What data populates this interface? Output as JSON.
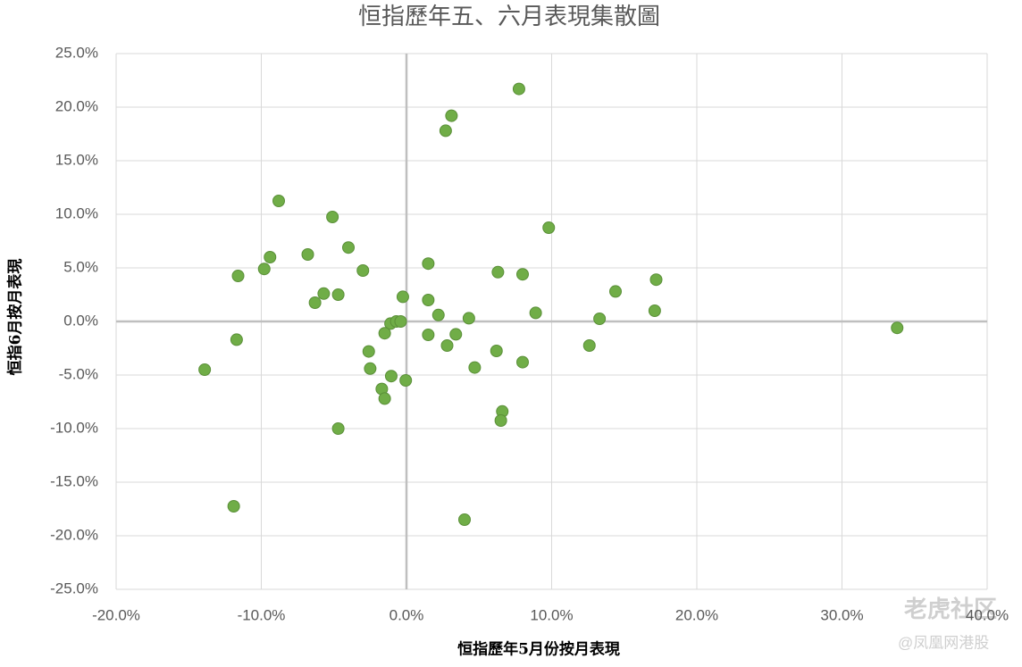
{
  "chart_data": {
    "type": "scatter",
    "title": "恒指歷年五、六月表現集散圖",
    "x_label": "恒指歷年5月份按月表現",
    "y_label": "恒指6月按月表現",
    "color": "#70ad47",
    "grid": true,
    "xlim": [
      -20,
      40
    ],
    "xticks": [
      {
        "value": -20,
        "label": "-20.0%"
      },
      {
        "value": -10,
        "label": "-10.0%"
      },
      {
        "value": 0,
        "label": "0.0%"
      },
      {
        "value": 10,
        "label": "10.0%"
      },
      {
        "value": 20,
        "label": "20.0%"
      },
      {
        "value": 30,
        "label": "30.0%"
      },
      {
        "value": 40,
        "label": "40.0%"
      }
    ],
    "ylim": [
      -25,
      25
    ],
    "yticks": [
      {
        "value": -25,
        "label": "-25.0%"
      },
      {
        "value": -20,
        "label": "-20.0%"
      },
      {
        "value": -15,
        "label": "-15.0%"
      },
      {
        "value": -10,
        "label": "-10.0%"
      },
      {
        "value": -5,
        "label": "-5.0%"
      },
      {
        "value": 0,
        "label": "0.0%"
      },
      {
        "value": 5,
        "label": "5.0%"
      },
      {
        "value": 10,
        "label": "10.0%"
      },
      {
        "value": 15,
        "label": "15.0%"
      },
      {
        "value": 20,
        "label": "20.0%"
      },
      {
        "value": 25,
        "label": "25.0%"
      }
    ],
    "x": [
      7.75,
      3.1,
      2.7,
      -8.8,
      -5.1,
      9.8,
      -4.0,
      -9.4,
      -6.8,
      -9.8,
      -11.6,
      -3.0,
      1.5,
      6.3,
      8.0,
      17.2,
      14.4,
      -5.7,
      -4.7,
      -6.3,
      -0.25,
      1.5,
      17.1,
      8.9,
      2.2,
      4.3,
      13.3,
      -1.1,
      -0.7,
      -0.4,
      33.8,
      -1.5,
      1.5,
      3.4,
      -11.7,
      2.8,
      12.6,
      6.2,
      -2.6,
      8.0,
      -2.5,
      4.7,
      -13.9,
      -1.05,
      -0.05,
      -1.7,
      -1.5,
      6.6,
      6.5,
      -4.7,
      -11.9,
      4.0
    ],
    "values": [
      21.7,
      19.2,
      17.8,
      11.25,
      9.75,
      8.75,
      6.9,
      6.0,
      6.25,
      4.9,
      4.25,
      4.75,
      5.4,
      4.6,
      4.4,
      3.9,
      2.8,
      2.6,
      2.5,
      1.75,
      2.3,
      2.0,
      1.0,
      0.8,
      0.6,
      0.3,
      0.25,
      -0.2,
      0,
      0,
      -0.6,
      -1.1,
      -1.25,
      -1.2,
      -1.7,
      -2.25,
      -2.25,
      -2.75,
      -2.8,
      -3.8,
      -4.4,
      -4.3,
      -4.5,
      -5.1,
      -5.5,
      -6.3,
      -7.2,
      -8.4,
      -9.25,
      -10.0,
      -17.25,
      -18.5
    ],
    "watermarks": [
      "老虎社区",
      "@凤凰网港股"
    ]
  }
}
